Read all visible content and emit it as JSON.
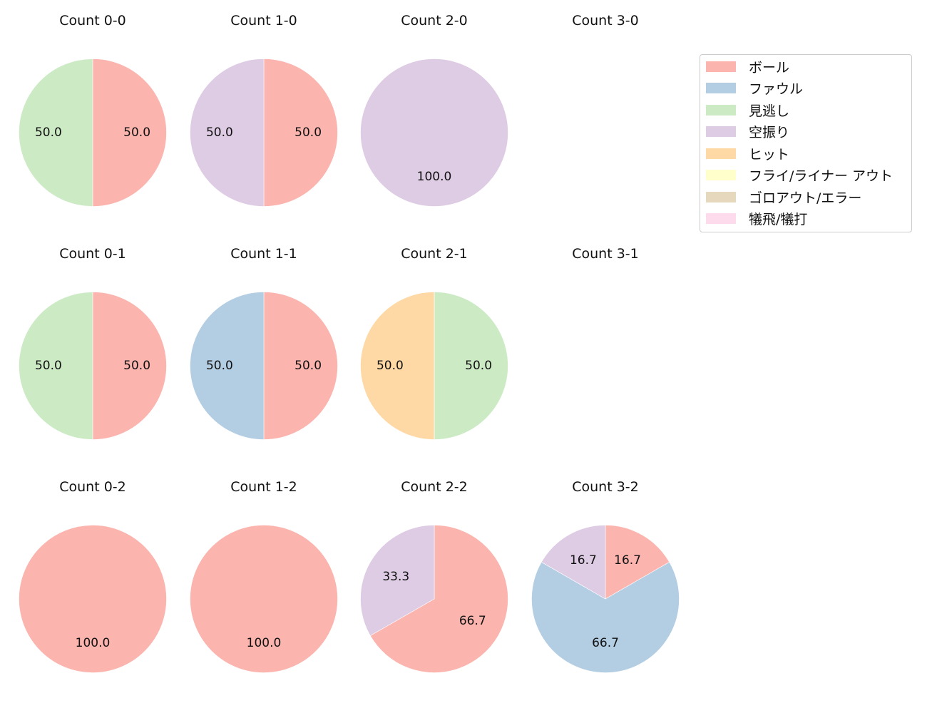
{
  "chart_data": {
    "type": "pie",
    "layout": {
      "rows": 3,
      "cols": 4
    },
    "legend": {
      "position": "upper right",
      "entries": [
        {
          "label": "ボール",
          "color": "#fbb4ae"
        },
        {
          "label": "ファウル",
          "color": "#b3cde3"
        },
        {
          "label": "見逃し",
          "color": "#ccebc5"
        },
        {
          "label": "空振り",
          "color": "#decbe4"
        },
        {
          "label": "ヒット",
          "color": "#fed9a6"
        },
        {
          "label": "フライ/ライナー アウト",
          "color": "#ffffcc"
        },
        {
          "label": "ゴロアウト/エラー",
          "color": "#e5d8bd"
        },
        {
          "label": "犠飛/犠打",
          "color": "#fddaec"
        }
      ]
    },
    "panels": [
      {
        "title": "Count 0-0",
        "slices": [
          {
            "label": "ボール",
            "value": 50.0,
            "color": "#fbb4ae"
          },
          {
            "label": "見逃し",
            "value": 50.0,
            "color": "#ccebc5"
          }
        ]
      },
      {
        "title": "Count 1-0",
        "slices": [
          {
            "label": "ボール",
            "value": 50.0,
            "color": "#fbb4ae"
          },
          {
            "label": "空振り",
            "value": 50.0,
            "color": "#decbe4"
          }
        ]
      },
      {
        "title": "Count 2-0",
        "slices": [
          {
            "label": "空振り",
            "value": 100.0,
            "color": "#decbe4"
          }
        ]
      },
      {
        "title": "Count 3-0",
        "slices": []
      },
      {
        "title": "Count 0-1",
        "slices": [
          {
            "label": "ボール",
            "value": 50.0,
            "color": "#fbb4ae"
          },
          {
            "label": "見逃し",
            "value": 50.0,
            "color": "#ccebc5"
          }
        ]
      },
      {
        "title": "Count 1-1",
        "slices": [
          {
            "label": "ボール",
            "value": 50.0,
            "color": "#fbb4ae"
          },
          {
            "label": "ファウル",
            "value": 50.0,
            "color": "#b3cde3"
          }
        ]
      },
      {
        "title": "Count 2-1",
        "slices": [
          {
            "label": "見逃し",
            "value": 50.0,
            "color": "#ccebc5"
          },
          {
            "label": "ヒット",
            "value": 50.0,
            "color": "#fed9a6"
          }
        ]
      },
      {
        "title": "Count 3-1",
        "slices": []
      },
      {
        "title": "Count 0-2",
        "slices": [
          {
            "label": "ボール",
            "value": 100.0,
            "color": "#fbb4ae"
          }
        ]
      },
      {
        "title": "Count 1-2",
        "slices": [
          {
            "label": "ボール",
            "value": 100.0,
            "color": "#fbb4ae"
          }
        ]
      },
      {
        "title": "Count 2-2",
        "slices": [
          {
            "label": "ボール",
            "value": 66.7,
            "color": "#fbb4ae"
          },
          {
            "label": "空振り",
            "value": 33.3,
            "color": "#decbe4"
          }
        ]
      },
      {
        "title": "Count 3-2",
        "slices": [
          {
            "label": "ボール",
            "value": 16.7,
            "color": "#fbb4ae"
          },
          {
            "label": "ファウル",
            "value": 66.7,
            "color": "#b3cde3"
          },
          {
            "label": "空振り",
            "value": 16.7,
            "color": "#decbe4"
          }
        ]
      }
    ]
  }
}
